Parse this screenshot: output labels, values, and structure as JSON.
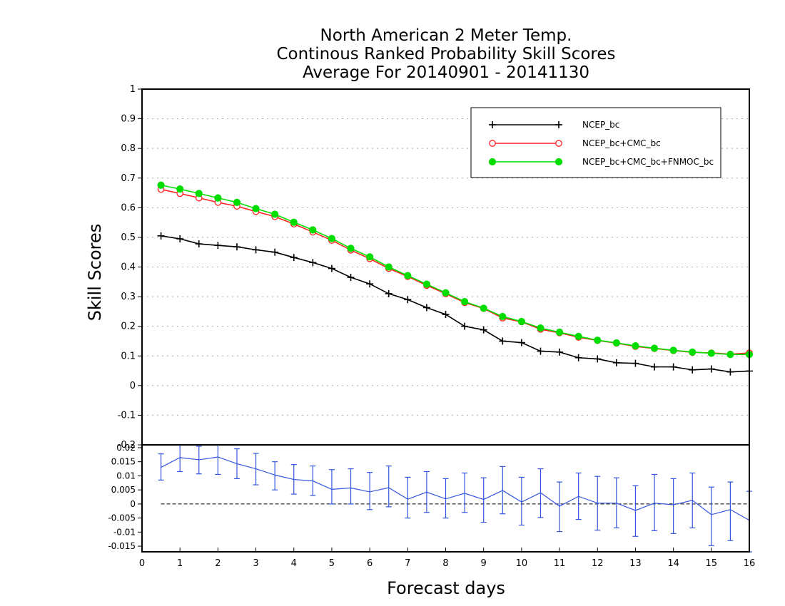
{
  "chart_data": [
    {
      "type": "line",
      "title": [
        "North American 2 Meter Temp.",
        "Continous Ranked Probability Skill Scores",
        "Average For 20140901 - 20141130"
      ],
      "ylabel": "Skill Scores",
      "xlim": [
        0,
        16
      ],
      "ylim": [
        -0.2,
        1
      ],
      "yticks": [
        "-0.2",
        "-0.1",
        "0",
        "0.1",
        "0.2",
        "0.3",
        "0.4",
        "0.5",
        "0.6",
        "0.7",
        "0.8",
        "0.9",
        "1"
      ],
      "grid": true,
      "legend_position": "top-right",
      "x": [
        0.5,
        1,
        1.5,
        2,
        2.5,
        3,
        3.5,
        4,
        4.5,
        5,
        5.5,
        6,
        6.5,
        7,
        7.5,
        8,
        8.5,
        9,
        9.5,
        10,
        10.5,
        11,
        11.5,
        12,
        12.5,
        13,
        13.5,
        14,
        14.5,
        15,
        15.5,
        16
      ],
      "series": [
        {
          "name": "NCEP_bc",
          "color": "#000000",
          "marker": "plus",
          "values": [
            0.505,
            0.495,
            0.478,
            0.473,
            0.468,
            0.458,
            0.45,
            0.432,
            0.415,
            0.395,
            0.365,
            0.343,
            0.31,
            0.29,
            0.263,
            0.24,
            0.2,
            0.188,
            0.15,
            0.145,
            0.116,
            0.113,
            0.094,
            0.09,
            0.077,
            0.075,
            0.063,
            0.063,
            0.053,
            0.056,
            0.046,
            0.049
          ]
        },
        {
          "name": "NCEP_bc+CMC_bc",
          "color": "#ff2020",
          "marker": "open-circle",
          "values": [
            0.662,
            0.648,
            0.633,
            0.618,
            0.605,
            0.587,
            0.57,
            0.545,
            0.518,
            0.49,
            0.457,
            0.428,
            0.395,
            0.368,
            0.338,
            0.31,
            0.28,
            0.26,
            0.228,
            0.215,
            0.19,
            0.178,
            0.163,
            0.152,
            0.143,
            0.132,
            0.125,
            0.118,
            0.112,
            0.11,
            0.106,
            0.11
          ]
        },
        {
          "name": "NCEP_bc+CMC_bc+FNMOC_bc",
          "color": "#00dd00",
          "marker": "filled-circle",
          "values": [
            0.676,
            0.663,
            0.648,
            0.633,
            0.618,
            0.597,
            0.578,
            0.551,
            0.525,
            0.496,
            0.463,
            0.434,
            0.4,
            0.371,
            0.342,
            0.313,
            0.283,
            0.261,
            0.233,
            0.216,
            0.194,
            0.18,
            0.166,
            0.153,
            0.144,
            0.134,
            0.126,
            0.119,
            0.113,
            0.109,
            0.105,
            0.105
          ]
        }
      ]
    },
    {
      "type": "line",
      "xlabel": "Forecast days",
      "xlim": [
        0,
        16
      ],
      "ylim": [
        -0.017,
        0.021
      ],
      "xticks": [
        "0",
        "1",
        "2",
        "3",
        "4",
        "5",
        "6",
        "7",
        "8",
        "9",
        "10",
        "11",
        "12",
        "13",
        "14",
        "15",
        "16"
      ],
      "yticks": [
        "-0.015",
        "-0.01",
        "-0.005",
        "0",
        "0.005",
        "0.01",
        "0.015",
        "0.02"
      ],
      "reference_line": 0,
      "x": [
        0.5,
        1,
        1.5,
        2,
        2.5,
        3,
        3.5,
        4,
        4.5,
        5,
        5.5,
        6,
        6.5,
        7,
        7.5,
        8,
        8.5,
        9,
        9.5,
        10,
        10.5,
        11,
        11.5,
        12,
        12.5,
        13,
        13.5,
        14,
        14.5,
        15,
        15.5,
        16
      ],
      "series": [
        {
          "color": "#3355dd",
          "values": [
            0.013,
            0.0165,
            0.0157,
            0.0167,
            0.0143,
            0.0125,
            0.0103,
            0.0087,
            0.0082,
            0.0052,
            0.0057,
            0.0043,
            0.0058,
            0.0017,
            0.0042,
            0.0018,
            0.0038,
            0.0016,
            0.0048,
            0.0007,
            0.004,
            -0.0008,
            0.0027,
            0.0003,
            0.0003,
            -0.0023,
            0.0003,
            -0.0003,
            0.0013,
            -0.0038,
            -0.002,
            -0.0058
          ],
          "lower": [
            0.0085,
            0.0115,
            0.0107,
            0.0105,
            0.009,
            0.0068,
            0.005,
            0.0035,
            0.003,
            0.0,
            0.0,
            -0.002,
            -0.001,
            -0.005,
            -0.003,
            -0.005,
            -0.003,
            -0.0065,
            -0.0035,
            -0.0075,
            -0.0048,
            -0.0098,
            -0.0055,
            -0.0093,
            -0.0085,
            -0.0115,
            -0.0095,
            -0.0105,
            -0.0085,
            -0.0148,
            -0.013,
            -0.017
          ],
          "upper": [
            0.0178,
            0.021,
            0.0205,
            0.0225,
            0.0196,
            0.018,
            0.015,
            0.014,
            0.0135,
            0.0122,
            0.0125,
            0.0112,
            0.0135,
            0.0095,
            0.0115,
            0.009,
            0.011,
            0.0093,
            0.0133,
            0.0095,
            0.0125,
            0.0078,
            0.011,
            0.0098,
            0.0093,
            0.0065,
            0.0105,
            0.009,
            0.011,
            0.006,
            0.0078,
            0.0045
          ]
        }
      ]
    }
  ]
}
